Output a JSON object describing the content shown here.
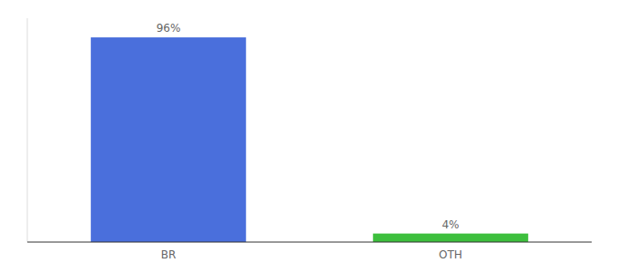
{
  "chart_data": {
    "type": "bar",
    "categories": [
      "BR",
      "OTH"
    ],
    "values": [
      96,
      4
    ],
    "value_labels": [
      "96%",
      "4%"
    ],
    "colors": [
      "#4a6fdc",
      "#3dbf3d"
    ],
    "ylim": [
      0,
      105
    ],
    "data_labels": true,
    "tick_labels": "x",
    "grid": false
  }
}
